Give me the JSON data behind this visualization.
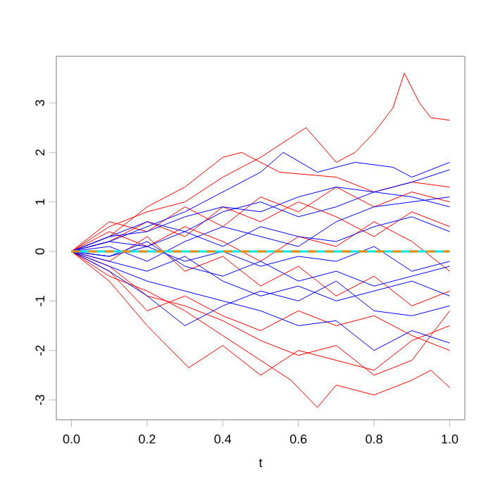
{
  "chart_data": {
    "type": "line",
    "xlabel": "t",
    "xlim": [
      -0.04,
      1.04
    ],
    "ylim": [
      -3.4,
      3.94
    ],
    "xticks": [
      {
        "value": 0,
        "label": "0.0"
      },
      {
        "value": 0.2,
        "label": "0.2"
      },
      {
        "value": 0.4,
        "label": "0.4"
      },
      {
        "value": 0.6,
        "label": "0.6"
      },
      {
        "value": 0.8,
        "label": "0.8"
      },
      {
        "value": 1,
        "label": "1.0"
      }
    ],
    "yticks": [
      -3,
      -2,
      -1,
      0,
      1,
      2,
      3
    ],
    "marker": "none",
    "line_style": "solid",
    "series": [
      {
        "color": "#ff0000",
        "x": [
          0,
          0.1,
          0.2,
          0.3,
          0.4,
          0.5,
          0.62,
          0.7,
          0.75,
          0.8,
          0.85,
          0.88,
          0.92,
          0.95,
          1
        ],
        "values": [
          0,
          0.5,
          0.8,
          1.0,
          1.5,
          1.9,
          2.5,
          1.8,
          2.0,
          2.4,
          2.9,
          3.6,
          3.0,
          2.7,
          2.65
        ]
      },
      {
        "color": "#ff0000",
        "x": [
          0,
          0.1,
          0.2,
          0.3,
          0.4,
          0.5,
          0.58,
          0.65,
          0.7,
          0.8,
          0.9,
          0.95,
          1
        ],
        "values": [
          0,
          -0.5,
          -0.8,
          -1.2,
          -1.7,
          -2.2,
          -2.6,
          -3.15,
          -2.7,
          -2.9,
          -2.6,
          -2.4,
          -2.75
        ]
      },
      {
        "color": "#ff0000",
        "x": [
          0,
          0.1,
          0.2,
          0.31,
          0.4,
          0.5,
          0.6,
          0.7,
          0.8,
          0.9,
          1
        ],
        "values": [
          0,
          -0.6,
          -1.5,
          -2.35,
          -1.9,
          -2.5,
          -2.0,
          -2.2,
          -2.4,
          -1.8,
          -1.5
        ]
      },
      {
        "color": "#ff0000",
        "x": [
          0,
          0.1,
          0.2,
          0.3,
          0.4,
          0.45,
          0.55,
          0.7,
          0.8,
          0.9,
          1
        ],
        "values": [
          0,
          0.3,
          0.9,
          1.3,
          1.9,
          2.0,
          1.6,
          1.5,
          1.2,
          1.4,
          1.3
        ]
      },
      {
        "color": "#ff0000",
        "x": [
          0,
          0.1,
          0.2,
          0.3,
          0.4,
          0.5,
          0.6,
          0.7,
          0.8,
          0.9,
          1
        ],
        "values": [
          0,
          -0.3,
          -0.9,
          -1.1,
          -1.4,
          -1.8,
          -2.1,
          -1.9,
          -2.5,
          -2.2,
          -1.2
        ]
      },
      {
        "color": "#ff0000",
        "x": [
          0,
          0.1,
          0.2,
          0.3,
          0.4,
          0.5,
          0.6,
          0.7,
          0.8,
          0.9,
          1
        ],
        "values": [
          0,
          0.6,
          0.4,
          0.9,
          0.5,
          1.1,
          0.8,
          1.3,
          0.9,
          1.2,
          1.0
        ]
      },
      {
        "color": "#ff0000",
        "x": [
          0,
          0.1,
          0.2,
          0.3,
          0.4,
          0.5,
          0.6,
          0.7,
          0.8,
          0.9,
          1
        ],
        "values": [
          0,
          -0.2,
          0.3,
          -0.4,
          -0.1,
          -0.7,
          -0.3,
          -0.9,
          -0.5,
          -1.1,
          -0.8
        ]
      },
      {
        "color": "#ff0000",
        "x": [
          0,
          0.1,
          0.2,
          0.3,
          0.4,
          0.5,
          0.6,
          0.7,
          0.8,
          0.9,
          1
        ],
        "values": [
          0,
          0.4,
          0.1,
          0.5,
          0.2,
          -0.2,
          0.3,
          0.1,
          0.6,
          0.2,
          -0.4
        ]
      },
      {
        "color": "#ff0000",
        "x": [
          0,
          0.1,
          0.2,
          0.3,
          0.4,
          0.5,
          0.6,
          0.7,
          0.8,
          0.9,
          1
        ],
        "values": [
          0,
          -0.4,
          -1.2,
          -0.9,
          -1.3,
          -1.6,
          -1.2,
          -1.5,
          -1.3,
          -1.7,
          -2.0
        ]
      },
      {
        "color": "#ff0000",
        "x": [
          0,
          0.1,
          0.2,
          0.3,
          0.4,
          0.5,
          0.6,
          0.7,
          0.8,
          0.9,
          1
        ],
        "values": [
          0,
          0.2,
          0.6,
          0.3,
          0.9,
          0.6,
          1.0,
          0.7,
          0.3,
          0.8,
          0.5
        ]
      },
      {
        "color": "#0000ff",
        "x": [
          0,
          0.1,
          0.2,
          0.3,
          0.4,
          0.5,
          0.56,
          0.65,
          0.75,
          0.85,
          0.9,
          1
        ],
        "values": [
          0,
          0.2,
          0.5,
          0.8,
          1.2,
          1.6,
          2.0,
          1.6,
          1.8,
          1.7,
          1.5,
          1.8
        ]
      },
      {
        "color": "#0000ff",
        "x": [
          0,
          0.1,
          0.2,
          0.3,
          0.4,
          0.5,
          0.6,
          0.7,
          0.8,
          0.9,
          1
        ],
        "values": [
          0,
          -0.3,
          -0.6,
          -0.8,
          -1.0,
          -1.2,
          -1.5,
          -1.4,
          -2.0,
          -1.6,
          -1.85
        ]
      },
      {
        "color": "#0000ff",
        "x": [
          0,
          0.1,
          0.2,
          0.3,
          0.4,
          0.5,
          0.6,
          0.7,
          0.8,
          0.9,
          1
        ],
        "values": [
          0,
          -0.4,
          -0.9,
          -1.5,
          -1.1,
          -0.8,
          -1.0,
          -0.6,
          -1.2,
          -1.3,
          -1.1
        ]
      },
      {
        "color": "#0000ff",
        "x": [
          0,
          0.1,
          0.2,
          0.3,
          0.4,
          0.5,
          0.6,
          0.7,
          0.8,
          0.9,
          1
        ],
        "values": [
          0,
          0.3,
          0.4,
          0.7,
          0.9,
          0.8,
          1.1,
          1.3,
          1.2,
          1.4,
          1.65
        ]
      },
      {
        "color": "#0000ff",
        "x": [
          0,
          0.1,
          0.2,
          0.3,
          0.4,
          0.5,
          0.6,
          0.7,
          0.8,
          0.9,
          1
        ],
        "values": [
          0,
          0.1,
          -0.2,
          0.2,
          0.5,
          0.3,
          0.1,
          0.6,
          0.9,
          1.0,
          1.1
        ]
      },
      {
        "color": "#0000ff",
        "x": [
          0,
          0.1,
          0.2,
          0.3,
          0.4,
          0.5,
          0.6,
          0.7,
          0.8,
          0.9,
          1
        ],
        "values": [
          0,
          -0.1,
          0.2,
          -0.3,
          -0.5,
          -0.2,
          -0.6,
          -0.4,
          -0.7,
          -0.5,
          -0.3
        ]
      },
      {
        "color": "#0000ff",
        "x": [
          0,
          0.1,
          0.2,
          0.3,
          0.4,
          0.5,
          0.6,
          0.7,
          0.8,
          0.9,
          1
        ],
        "values": [
          0,
          0.2,
          0.1,
          0.4,
          0.1,
          0.5,
          0.3,
          0.2,
          0.5,
          0.7,
          0.4
        ]
      },
      {
        "color": "#0000ff",
        "x": [
          0,
          0.1,
          0.2,
          0.3,
          0.4,
          0.5,
          0.6,
          0.7,
          0.8,
          0.9,
          1
        ],
        "values": [
          0,
          -0.2,
          -0.4,
          -0.1,
          -0.6,
          -0.9,
          -0.7,
          -1.0,
          -0.8,
          -0.6,
          -0.9
        ]
      },
      {
        "color": "#0000ff",
        "x": [
          0,
          0.1,
          0.2,
          0.3,
          0.4,
          0.5,
          0.6,
          0.7,
          0.8,
          0.9,
          1
        ],
        "values": [
          0,
          0.3,
          0.6,
          0.4,
          0.8,
          1.0,
          0.7,
          0.9,
          1.2,
          1.1,
          0.9
        ]
      },
      {
        "color": "#0000ff",
        "x": [
          0,
          0.1,
          0.2,
          0.3,
          0.4,
          0.5,
          0.6,
          0.7,
          0.8,
          0.9,
          1
        ],
        "values": [
          0,
          -0.1,
          0.1,
          -0.2,
          0.0,
          -0.3,
          -0.1,
          -0.2,
          0.1,
          -0.4,
          -0.2
        ]
      },
      {
        "color": "#00e5e5",
        "x": [
          0,
          1
        ],
        "values": [
          0,
          0
        ],
        "line_style": "solid"
      },
      {
        "color": "#ff8c00",
        "x": [
          0,
          1
        ],
        "values": [
          0,
          0
        ],
        "line_style": "dashed"
      }
    ]
  }
}
